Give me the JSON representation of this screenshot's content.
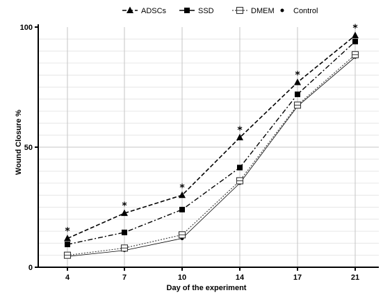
{
  "chart_data": {
    "type": "line",
    "title": "",
    "xlabel": "Day of the experiment",
    "ylabel": "Wound Closure %",
    "categories": [
      "4",
      "7",
      "10",
      "14",
      "17",
      "21"
    ],
    "ylim": [
      0,
      100
    ],
    "y_ticks": [
      "0",
      "50",
      "100"
    ],
    "grid": "on",
    "legend_position": "top",
    "series": [
      {
        "name": "ADSCs",
        "marker": "triangle",
        "dash": "dash",
        "color": "#000000",
        "values": [
          12,
          22.5,
          30,
          54,
          77,
          96.5
        ]
      },
      {
        "name": "SSD",
        "marker": "square",
        "dash": "dashdot",
        "color": "#000000",
        "values": [
          9.5,
          14.5,
          24,
          41.5,
          72,
          94
        ]
      },
      {
        "name": "DMEM",
        "marker": "open-square",
        "dash": "dot",
        "color": "#444444",
        "values": [
          5,
          8,
          13.5,
          36,
          67.5,
          88.5
        ]
      },
      {
        "name": "Control",
        "marker": "dot",
        "dash": "solid-thin",
        "color": "#000000",
        "values": [
          4.5,
          7,
          12,
          35,
          67,
          87.5
        ]
      }
    ],
    "annotations": [
      "*",
      "*",
      "*",
      "*",
      "*",
      "*"
    ]
  }
}
